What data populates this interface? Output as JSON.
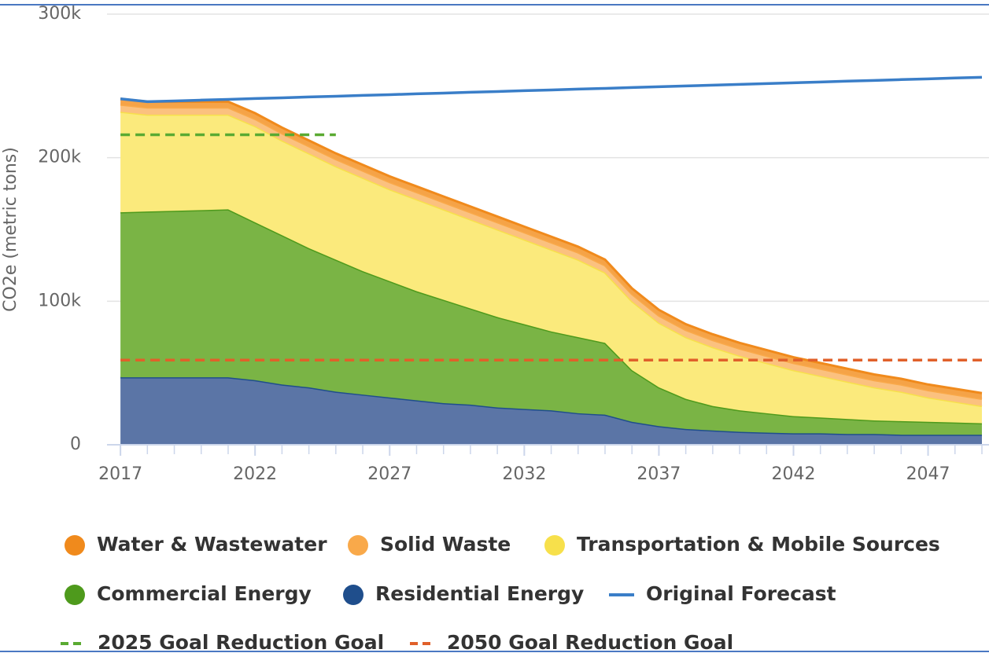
{
  "chart_data": {
    "type": "stacked_area",
    "y_label": "CO2e (metric tons)",
    "x": [
      2017,
      2018,
      2019,
      2020,
      2021,
      2022,
      2023,
      2024,
      2025,
      2026,
      2027,
      2028,
      2029,
      2030,
      2031,
      2032,
      2033,
      2034,
      2035,
      2036,
      2037,
      2038,
      2039,
      2040,
      2041,
      2042,
      2043,
      2044,
      2045,
      2046,
      2047,
      2048,
      2049
    ],
    "xlim": [
      2016.5,
      2049
    ],
    "xticks": [
      2017,
      2022,
      2027,
      2032,
      2037,
      2042,
      2047
    ],
    "ylim": [
      0,
      300000
    ],
    "yticks": [
      0,
      {
        "value": 100000,
        "label": "100k"
      },
      {
        "value": 200000,
        "label": "200k"
      },
      {
        "value": 300000,
        "label": "300k"
      }
    ],
    "grid": true,
    "series": [
      {
        "name": "Water & Wastewater",
        "kind": "area",
        "color": "#f08a1c",
        "fill": "#f5a347",
        "values": [
          4000,
          4000,
          4000,
          4000,
          4000,
          4000,
          4000,
          4000,
          4000,
          4000,
          4000,
          4000,
          4000,
          4000,
          4000,
          4000,
          4000,
          4000,
          4000,
          4000,
          4000,
          4000,
          4000,
          4000,
          4000,
          4000,
          4000,
          4000,
          4000,
          4000,
          4000,
          4000,
          4000
        ]
      },
      {
        "name": "Solid Waste",
        "kind": "area",
        "color": "#f9a94a",
        "fill": "#fbc17f",
        "values": [
          5000,
          5000,
          5000,
          5000,
          5000,
          5000,
          5000,
          5000,
          5000,
          5000,
          5000,
          5000,
          5000,
          5000,
          5000,
          5000,
          5000,
          5000,
          5000,
          5000,
          5000,
          5000,
          5000,
          5000,
          5000,
          5000,
          5000,
          5000,
          5000,
          5000,
          5000,
          5000,
          5000
        ]
      },
      {
        "name": "Transportation & Mobile Sources",
        "kind": "area",
        "color": "#f7e04b",
        "fill": "#fbea7c",
        "values": [
          70000,
          67500,
          67000,
          66500,
          66000,
          67000,
          66000,
          66000,
          65000,
          65000,
          64000,
          64000,
          63000,
          62000,
          61000,
          59000,
          57000,
          54000,
          49000,
          48000,
          45000,
          43000,
          41000,
          38000,
          35000,
          32000,
          29000,
          26000,
          23000,
          20500,
          17000,
          14500,
          12000
        ]
      },
      {
        "name": "Commercial Energy",
        "kind": "area",
        "color": "#4e9a1c",
        "fill": "#7ab445",
        "values": [
          115000,
          115500,
          116000,
          116500,
          117000,
          110000,
          104000,
          97000,
          92000,
          86000,
          81000,
          76000,
          72000,
          67000,
          63000,
          59000,
          55000,
          53000,
          50000,
          36000,
          27000,
          21000,
          17000,
          15000,
          13500,
          12000,
          11000,
          10500,
          9500,
          9500,
          9000,
          8500,
          8000
        ]
      },
      {
        "name": "Residential Energy",
        "kind": "area",
        "color": "#1f4e8c",
        "fill": "#5b75a6",
        "values": [
          47000,
          47000,
          47000,
          47000,
          47000,
          45000,
          42000,
          40000,
          37000,
          35000,
          33000,
          31000,
          29000,
          28000,
          26000,
          25000,
          24000,
          22000,
          21000,
          16000,
          13000,
          11000,
          10000,
          9000,
          8500,
          8000,
          8000,
          7500,
          7500,
          7000,
          7000,
          7000,
          7000
        ]
      },
      {
        "name": "Original Forecast",
        "kind": "line",
        "color": "#3a7ec8",
        "values": [
          241000,
          239000,
          239500,
          240100,
          240600,
          241200,
          241700,
          242300,
          242800,
          243400,
          243900,
          244500,
          245000,
          245600,
          246100,
          246700,
          247200,
          247800,
          248300,
          248900,
          249400,
          250000,
          250500,
          251100,
          251600,
          252200,
          252700,
          253300,
          253800,
          254400,
          254900,
          255500,
          256000
        ]
      },
      {
        "name": "2025 Goal Reduction Goal",
        "kind": "dashed",
        "color": "#5aaa32",
        "values": [
          216000,
          216000,
          216000,
          216000,
          216000,
          216000,
          216000,
          216000,
          216000,
          null,
          null,
          null,
          null,
          null,
          null,
          null,
          null,
          null,
          null,
          null,
          null,
          null,
          null,
          null,
          null,
          null,
          null,
          null,
          null,
          null,
          null,
          null,
          null
        ]
      },
      {
        "name": "2050 Goal Reduction Goal",
        "kind": "dashed",
        "color": "#e0602a",
        "values": [
          59000,
          59000,
          59000,
          59000,
          59000,
          59000,
          59000,
          59000,
          59000,
          59000,
          59000,
          59000,
          59000,
          59000,
          59000,
          59000,
          59000,
          59000,
          59000,
          59000,
          59000,
          59000,
          59000,
          59000,
          59000,
          59000,
          59000,
          59000,
          59000,
          59000,
          59000,
          59000,
          59000
        ]
      }
    ]
  }
}
